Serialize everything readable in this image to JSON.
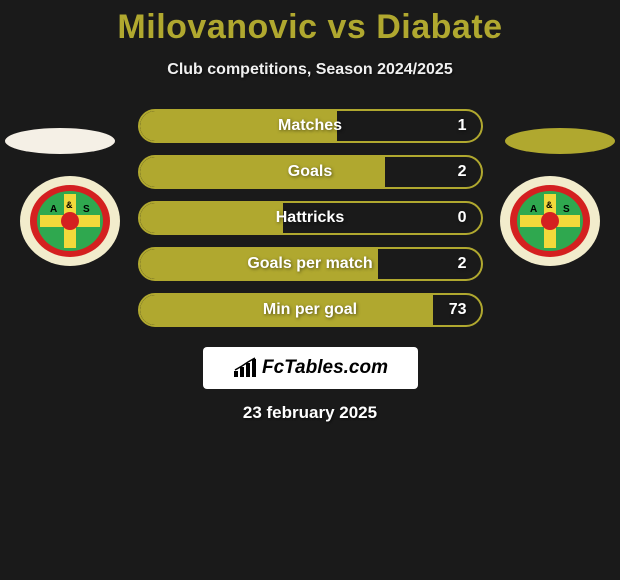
{
  "title": {
    "text": "Milovanovic vs Diabate",
    "color": "#b0a82f",
    "fontsize": 34
  },
  "subtitle": {
    "text": "Club competitions, Season 2024/2025",
    "fontsize": 16
  },
  "accent_color": "#b0a82f",
  "background_color": "#1a1a1a",
  "player_left": {
    "ellipse_color": "#f5f0e6",
    "badge": {
      "outer": "#f2eccc",
      "ring": "#d42020",
      "inner": "#2fa84f",
      "cross": "#f2d93b",
      "text_color": "#000000",
      "letters": "A & S"
    }
  },
  "player_right": {
    "ellipse_color": "#b0a82f",
    "badge": {
      "outer": "#f2eccc",
      "ring": "#d42020",
      "inner": "#2fa84f",
      "cross": "#f2d93b",
      "text_color": "#000000",
      "letters": "A & S"
    }
  },
  "stats": [
    {
      "label": "Matches",
      "value": "1",
      "fill_pct": 58
    },
    {
      "label": "Goals",
      "value": "2",
      "fill_pct": 72
    },
    {
      "label": "Hattricks",
      "value": "0",
      "fill_pct": 42
    },
    {
      "label": "Goals per match",
      "value": "2",
      "fill_pct": 70
    },
    {
      "label": "Min per goal",
      "value": "73",
      "fill_pct": 86
    }
  ],
  "stat_style": {
    "border_color": "#b0a82f",
    "fill_color": "#b0a82f",
    "label_fontsize": 16,
    "value_fontsize": 16
  },
  "logo": {
    "brand": "FcTables.com",
    "bg": "#ffffff",
    "text_color": "#000000"
  },
  "date": {
    "text": "23 february 2025",
    "fontsize": 17
  }
}
